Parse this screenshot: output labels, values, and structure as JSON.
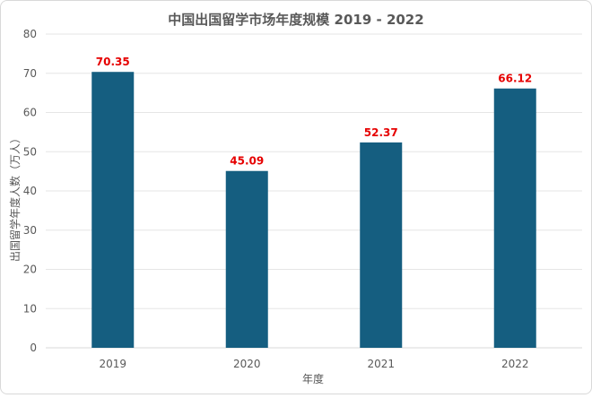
{
  "chart_data": {
    "type": "bar",
    "title": "中国出国留学市场年度规模 2019 - 2022",
    "xlabel": "年度",
    "ylabel": "出国留学年度人数（万人）",
    "categories": [
      "2019",
      "2020",
      "2021",
      "2022"
    ],
    "values": [
      70.35,
      45.09,
      52.37,
      66.12
    ],
    "data_labels": [
      "70.35",
      "45.09",
      "52.37",
      "66.12"
    ],
    "yticks": [
      "0",
      "10",
      "20",
      "30",
      "40",
      "50",
      "60",
      "70",
      "80"
    ],
    "ylim": [
      0,
      80
    ],
    "grid": true,
    "legend": "none",
    "bar_color": "#155e80",
    "label_color": "#e60000"
  }
}
